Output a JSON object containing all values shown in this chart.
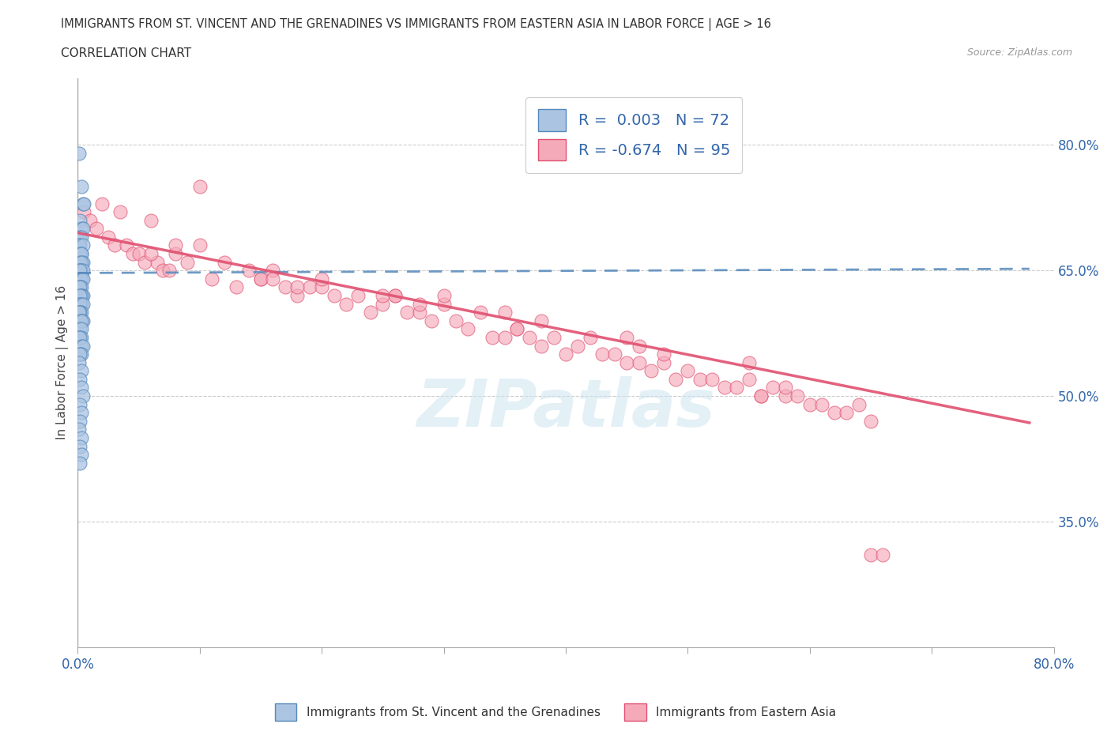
{
  "title": "IMMIGRANTS FROM ST. VINCENT AND THE GRENADINES VS IMMIGRANTS FROM EASTERN ASIA IN LABOR FORCE | AGE > 16",
  "subtitle": "CORRELATION CHART",
  "source": "Source: ZipAtlas.com",
  "ylabel": "In Labor Force | Age > 16",
  "xlim": [
    0.0,
    0.8
  ],
  "ylim": [
    0.2,
    0.88
  ],
  "xticks": [
    0.0,
    0.1,
    0.2,
    0.3,
    0.4,
    0.5,
    0.6,
    0.7,
    0.8
  ],
  "xtick_labels_sparse": {
    "0.0": "0.0%",
    "0.8": "80.0%"
  },
  "ytick_labels_right": [
    "35.0%",
    "50.0%",
    "65.0%",
    "80.0%"
  ],
  "ytick_vals_right": [
    0.35,
    0.5,
    0.65,
    0.8
  ],
  "blue_R": 0.003,
  "blue_N": 72,
  "pink_R": -0.674,
  "pink_N": 95,
  "blue_color": "#aac4e2",
  "pink_color": "#f5aaba",
  "blue_line_color": "#5588bb",
  "pink_line_color": "#e05070",
  "legend_label_blue": "Immigrants from St. Vincent and the Grenadines",
  "legend_label_pink": "Immigrants from Eastern Asia",
  "watermark": "ZIPatlas",
  "blue_scatter_x": [
    0.001,
    0.003,
    0.004,
    0.005,
    0.002,
    0.003,
    0.004,
    0.002,
    0.003,
    0.001,
    0.002,
    0.004,
    0.003,
    0.002,
    0.003,
    0.004,
    0.002,
    0.003,
    0.001,
    0.002,
    0.003,
    0.004,
    0.002,
    0.003,
    0.002,
    0.003,
    0.004,
    0.002,
    0.003,
    0.001,
    0.002,
    0.003,
    0.004,
    0.002,
    0.003,
    0.002,
    0.001,
    0.003,
    0.002,
    0.004,
    0.002,
    0.003,
    0.002,
    0.001,
    0.003,
    0.002,
    0.004,
    0.003,
    0.002,
    0.003,
    0.002,
    0.003,
    0.001,
    0.002,
    0.003,
    0.004,
    0.002,
    0.003,
    0.002,
    0.001,
    0.003,
    0.002,
    0.003,
    0.004,
    0.002,
    0.003,
    0.002,
    0.001,
    0.003,
    0.002,
    0.003,
    0.002
  ],
  "blue_scatter_y": [
    0.79,
    0.75,
    0.73,
    0.73,
    0.71,
    0.7,
    0.7,
    0.69,
    0.69,
    0.68,
    0.68,
    0.68,
    0.67,
    0.67,
    0.67,
    0.66,
    0.66,
    0.66,
    0.65,
    0.65,
    0.65,
    0.65,
    0.65,
    0.64,
    0.64,
    0.64,
    0.64,
    0.63,
    0.63,
    0.63,
    0.63,
    0.62,
    0.62,
    0.62,
    0.62,
    0.62,
    0.61,
    0.61,
    0.61,
    0.61,
    0.6,
    0.6,
    0.6,
    0.6,
    0.59,
    0.59,
    0.59,
    0.59,
    0.58,
    0.58,
    0.57,
    0.57,
    0.57,
    0.57,
    0.56,
    0.56,
    0.55,
    0.55,
    0.55,
    0.54,
    0.53,
    0.52,
    0.51,
    0.5,
    0.49,
    0.48,
    0.47,
    0.46,
    0.45,
    0.44,
    0.43,
    0.42
  ],
  "pink_scatter_x": [
    0.005,
    0.01,
    0.015,
    0.02,
    0.025,
    0.03,
    0.035,
    0.04,
    0.045,
    0.05,
    0.055,
    0.06,
    0.065,
    0.07,
    0.075,
    0.08,
    0.09,
    0.1,
    0.11,
    0.12,
    0.13,
    0.14,
    0.15,
    0.16,
    0.17,
    0.18,
    0.19,
    0.2,
    0.21,
    0.22,
    0.23,
    0.24,
    0.25,
    0.26,
    0.27,
    0.28,
    0.29,
    0.3,
    0.31,
    0.32,
    0.33,
    0.34,
    0.35,
    0.36,
    0.37,
    0.38,
    0.39,
    0.4,
    0.41,
    0.42,
    0.43,
    0.44,
    0.45,
    0.46,
    0.47,
    0.48,
    0.49,
    0.5,
    0.51,
    0.52,
    0.53,
    0.54,
    0.55,
    0.56,
    0.57,
    0.58,
    0.59,
    0.6,
    0.61,
    0.62,
    0.63,
    0.64,
    0.65,
    0.1,
    0.2,
    0.3,
    0.15,
    0.25,
    0.35,
    0.45,
    0.55,
    0.65,
    0.08,
    0.18,
    0.28,
    0.38,
    0.48,
    0.58,
    0.06,
    0.16,
    0.26,
    0.36,
    0.46,
    0.56,
    0.66
  ],
  "pink_scatter_y": [
    0.72,
    0.71,
    0.7,
    0.73,
    0.69,
    0.68,
    0.72,
    0.68,
    0.67,
    0.67,
    0.66,
    0.71,
    0.66,
    0.65,
    0.65,
    0.67,
    0.66,
    0.68,
    0.64,
    0.66,
    0.63,
    0.65,
    0.64,
    0.65,
    0.63,
    0.62,
    0.63,
    0.63,
    0.62,
    0.61,
    0.62,
    0.6,
    0.61,
    0.62,
    0.6,
    0.6,
    0.59,
    0.61,
    0.59,
    0.58,
    0.6,
    0.57,
    0.57,
    0.58,
    0.57,
    0.56,
    0.57,
    0.55,
    0.56,
    0.57,
    0.55,
    0.55,
    0.54,
    0.54,
    0.53,
    0.54,
    0.52,
    0.53,
    0.52,
    0.52,
    0.51,
    0.51,
    0.52,
    0.5,
    0.51,
    0.5,
    0.5,
    0.49,
    0.49,
    0.48,
    0.48,
    0.49,
    0.47,
    0.75,
    0.64,
    0.62,
    0.64,
    0.62,
    0.6,
    0.57,
    0.54,
    0.31,
    0.68,
    0.63,
    0.61,
    0.59,
    0.55,
    0.51,
    0.67,
    0.64,
    0.62,
    0.58,
    0.56,
    0.5,
    0.31
  ],
  "blue_trend_x0": 0.0,
  "blue_trend_x1": 0.78,
  "blue_trend_y0": 0.647,
  "blue_trend_y1": 0.652,
  "pink_trend_x0": 0.0,
  "pink_trend_x1": 0.78,
  "pink_trend_y0": 0.695,
  "pink_trend_y1": 0.468
}
